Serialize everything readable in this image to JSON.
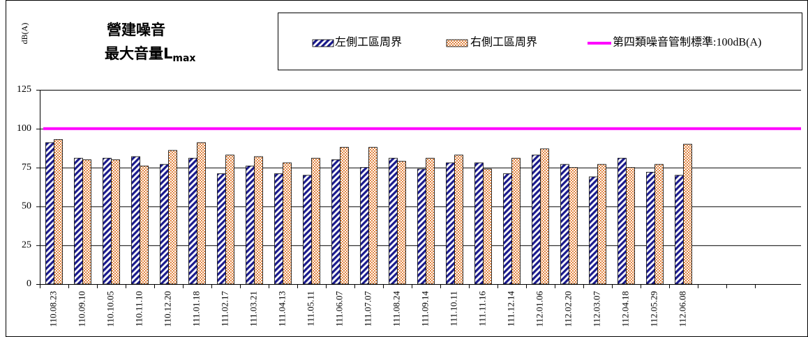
{
  "chart_data": {
    "type": "bar",
    "title": {
      "line1": "營建噪音",
      "line2": "最大音量L",
      "line2_sub": "max"
    },
    "y_label": "dB(A)",
    "categories": [
      "110.08.23",
      "110.09.10",
      "110.10.05",
      "110.11.10",
      "110.12.20",
      "111.01.18",
      "111.02.17",
      "111.03.21",
      "111.04.13",
      "111.05.11",
      "111.06.07",
      "111.07.07",
      "111.08.24",
      "111.09.14",
      "111.10.11",
      "111.11.16",
      "111.12.14",
      "112.01.06",
      "112.02.20",
      "112.03.07",
      "112.04.18",
      "112.05.29",
      "112.06.08",
      null,
      null,
      null
    ],
    "series": [
      {
        "name": "左側工區周界",
        "color": "#1a1a8c",
        "values": [
          91,
          81,
          81,
          82,
          77,
          81,
          71,
          76,
          71,
          70,
          80,
          75,
          81,
          74,
          78,
          78,
          71,
          83,
          77,
          69,
          81,
          72,
          70,
          null,
          null,
          null
        ]
      },
      {
        "name": "右側工區周界",
        "color": "#e07a30",
        "values": [
          93,
          80,
          80,
          76,
          86,
          91,
          83,
          82,
          78,
          81,
          88,
          88,
          79,
          81,
          83,
          74,
          81,
          87,
          75,
          77,
          75,
          77,
          90,
          null,
          null,
          null
        ]
      },
      {
        "name": "第四類噪音管制標準:100dB(A)",
        "color": "#ff00ff",
        "type": "line",
        "values": [
          100,
          100,
          100,
          100,
          100,
          100,
          100,
          100,
          100,
          100,
          100,
          100,
          100,
          100,
          100,
          100,
          100,
          100,
          100,
          100,
          100,
          100,
          100,
          100,
          100,
          100
        ]
      }
    ],
    "ylim": [
      0,
      125
    ],
    "yticks": [
      0,
      25,
      50,
      75,
      100,
      125
    ],
    "grid": true
  }
}
